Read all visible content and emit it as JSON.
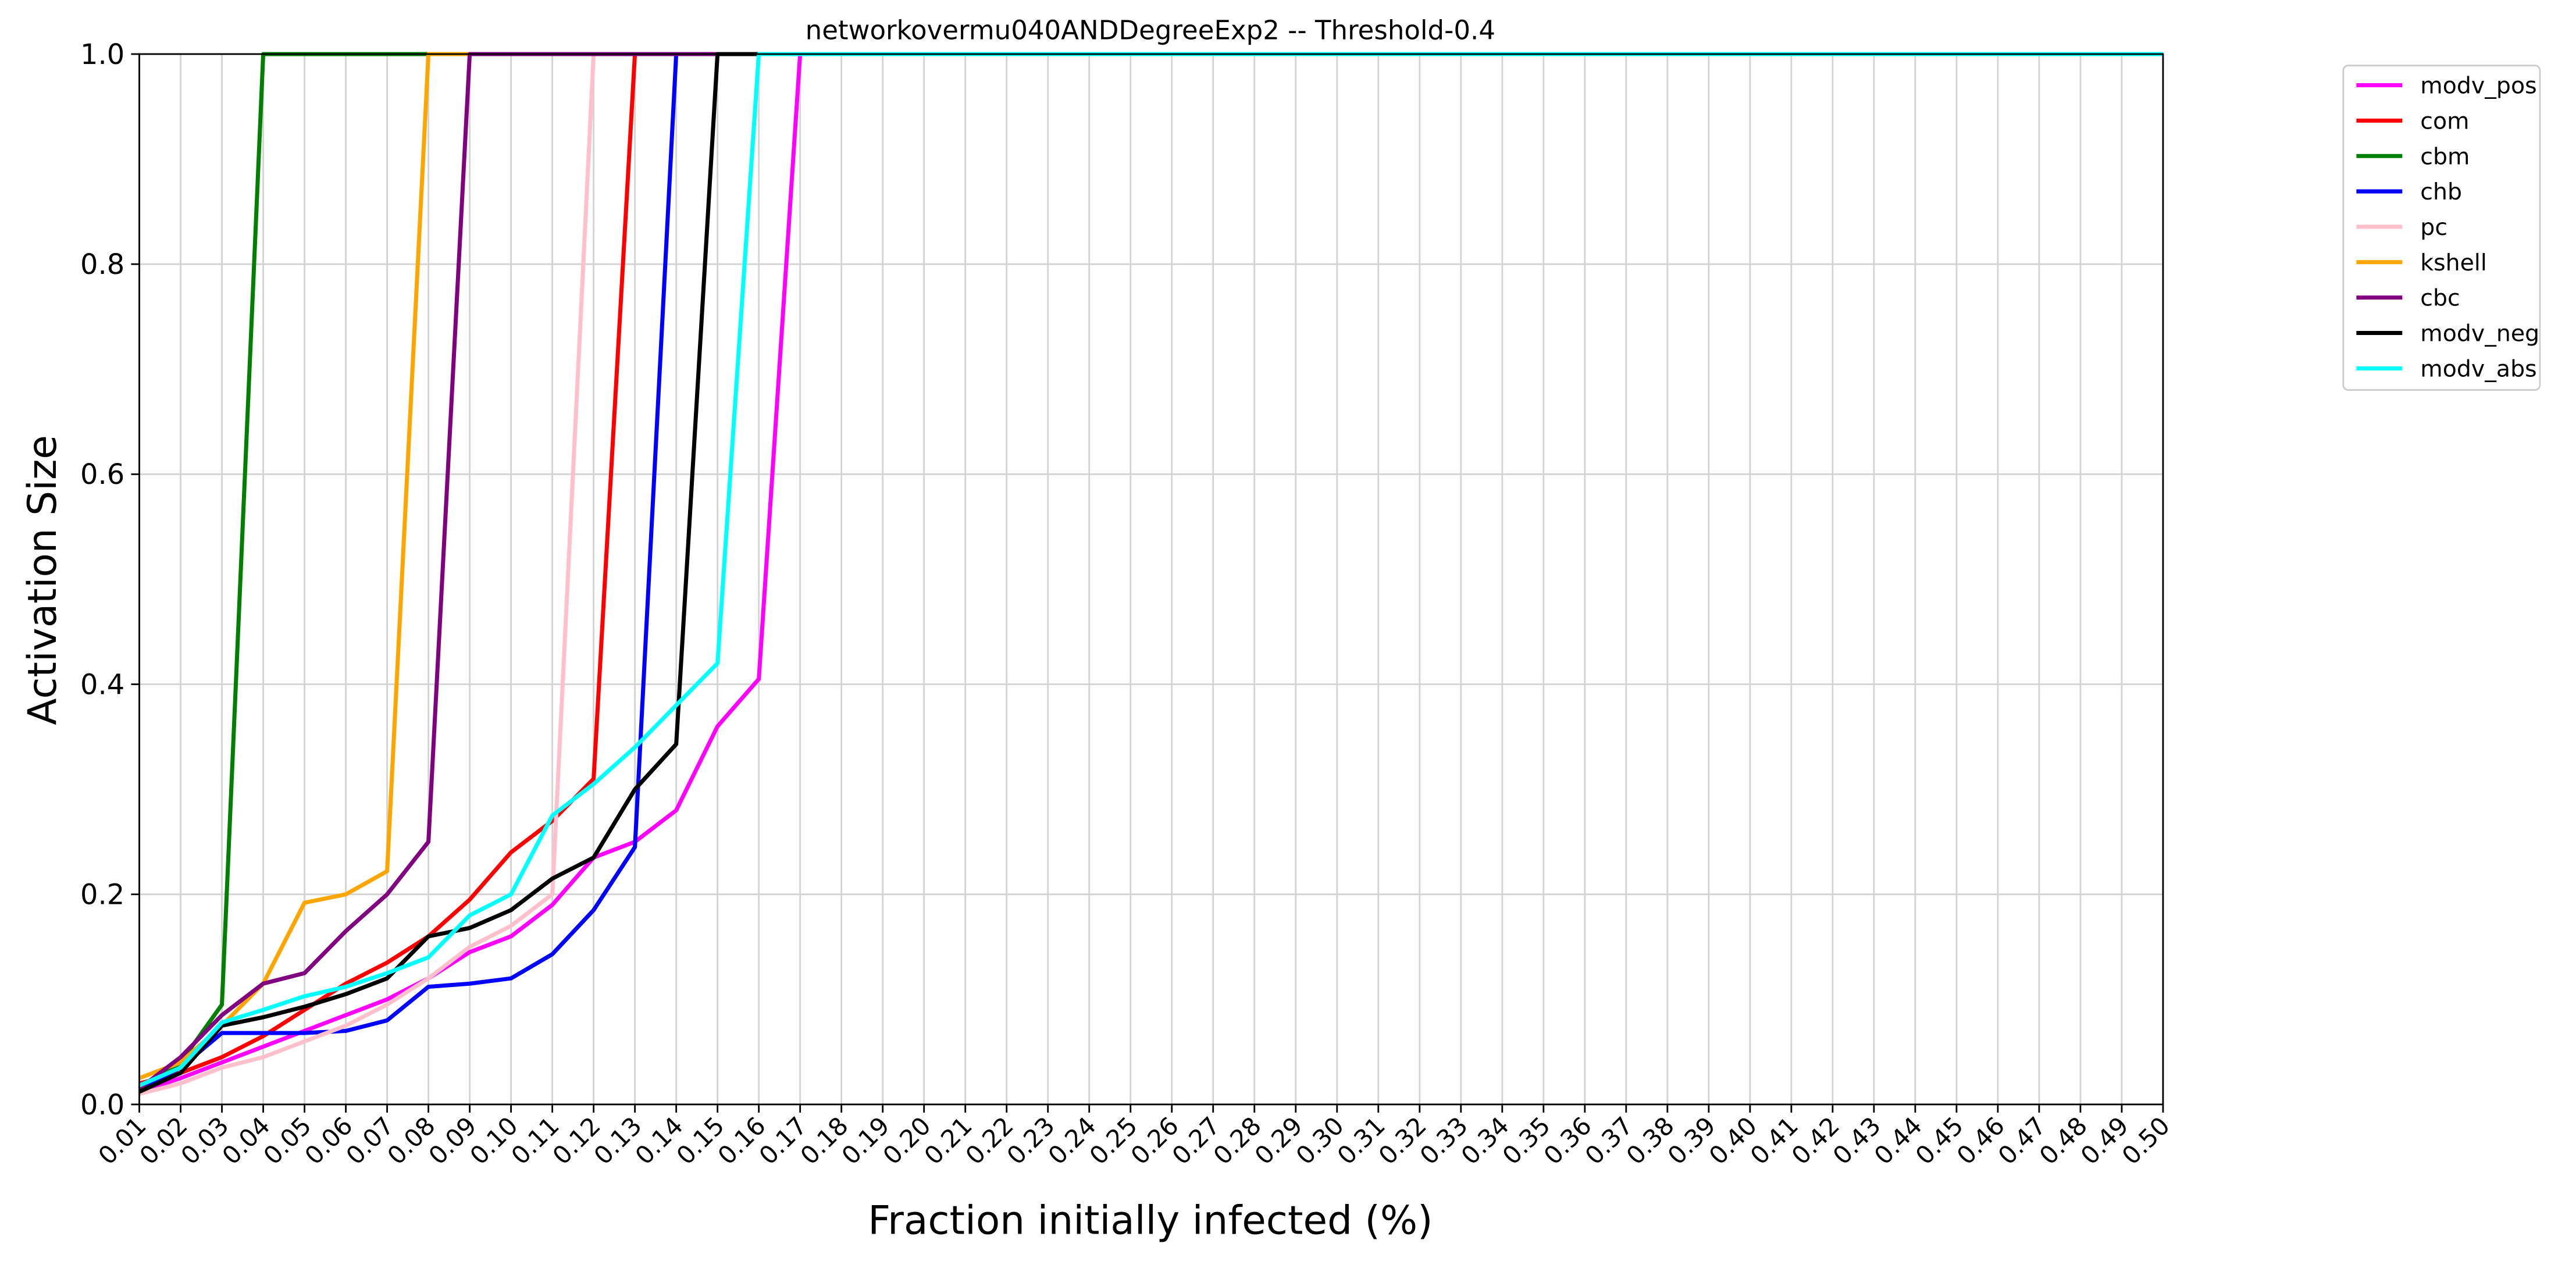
{
  "chart_data": {
    "type": "line",
    "title": "networkovermu040ANDDegreeExp2 -- Threshold-0.4",
    "x_label": "Fraction initially infected (%)",
    "y_label": "Activation Size",
    "categories": [
      "0.01",
      "0.02",
      "0.03",
      "0.04",
      "0.05",
      "0.06",
      "0.07",
      "0.08",
      "0.09",
      "0.10",
      "0.11",
      "0.12",
      "0.13",
      "0.14",
      "0.15",
      "0.16",
      "0.17",
      "0.18",
      "0.19",
      "0.20",
      "0.21",
      "0.22",
      "0.23",
      "0.24",
      "0.25",
      "0.26",
      "0.27",
      "0.28",
      "0.29",
      "0.30",
      "0.31",
      "0.32",
      "0.33",
      "0.34",
      "0.35",
      "0.36",
      "0.37",
      "0.38",
      "0.39",
      "0.40",
      "0.41",
      "0.42",
      "0.43",
      "0.44",
      "0.45",
      "0.46",
      "0.47",
      "0.48",
      "0.49",
      "0.50"
    ],
    "ylim": [
      0,
      1
    ],
    "yticks": [
      {
        "value": 0,
        "label": "0.0"
      },
      0.2,
      0.4,
      0.6,
      0.8,
      {
        "value": 1,
        "label": "1.0"
      }
    ],
    "grid": true,
    "legend": "outside-upper-right",
    "series": [
      {
        "name": "modv_pos",
        "color": "#ff00ff",
        "values": [
          0.012,
          0.025,
          0.04,
          0.055,
          0.07,
          0.085,
          0.1,
          0.12,
          0.145,
          0.16,
          0.19,
          0.235,
          0.25,
          0.28,
          0.36,
          0.405,
          1,
          1,
          1,
          1,
          1,
          1,
          1,
          1,
          1,
          1,
          1,
          1,
          1,
          1,
          1,
          1,
          1,
          1,
          1,
          1,
          1,
          1,
          1,
          1,
          1,
          1,
          1,
          1,
          1,
          1,
          1,
          1,
          1,
          1
        ]
      },
      {
        "name": "com",
        "color": "#ff0000",
        "values": [
          0.02,
          0.03,
          0.045,
          0.065,
          0.09,
          0.115,
          0.135,
          0.16,
          0.195,
          0.24,
          0.27,
          0.31,
          1,
          1,
          1,
          1,
          1,
          1,
          1,
          1,
          1,
          1,
          1,
          1,
          1,
          1,
          1,
          1,
          1,
          1,
          1,
          1,
          1,
          1,
          1,
          1,
          1,
          1,
          1,
          1,
          1,
          1,
          1,
          1,
          1,
          1,
          1,
          1,
          1,
          1
        ]
      },
      {
        "name": "cbm",
        "color": "#008000",
        "values": [
          0.015,
          0.04,
          0.095,
          1,
          1,
          1,
          1,
          1,
          1,
          1,
          1,
          1,
          1,
          1,
          1,
          1,
          1,
          1,
          1,
          1,
          1,
          1,
          1,
          1,
          1,
          1,
          1,
          1,
          1,
          1,
          1,
          1,
          1,
          1,
          1,
          1,
          1,
          1,
          1,
          1,
          1,
          1,
          1,
          1,
          1,
          1,
          1,
          1,
          1,
          1
        ]
      },
      {
        "name": "chb",
        "color": "#0000ff",
        "values": [
          0.015,
          0.035,
          0.068,
          0.068,
          0.068,
          0.07,
          0.08,
          0.112,
          0.115,
          0.12,
          0.143,
          0.185,
          0.245,
          1,
          1,
          1,
          1,
          1,
          1,
          1,
          1,
          1,
          1,
          1,
          1,
          1,
          1,
          1,
          1,
          1,
          1,
          1,
          1,
          1,
          1,
          1,
          1,
          1,
          1,
          1,
          1,
          1,
          1,
          1,
          1,
          1,
          1,
          1,
          1,
          1
        ]
      },
      {
        "name": "pc",
        "color": "#ffc0cb",
        "values": [
          0.01,
          0.02,
          0.035,
          0.045,
          0.06,
          0.075,
          0.095,
          0.12,
          0.15,
          0.17,
          0.2,
          1,
          1,
          1,
          1,
          1,
          1,
          1,
          1,
          1,
          1,
          1,
          1,
          1,
          1,
          1,
          1,
          1,
          1,
          1,
          1,
          1,
          1,
          1,
          1,
          1,
          1,
          1,
          1,
          1,
          1,
          1,
          1,
          1,
          1,
          1,
          1,
          1,
          1,
          1
        ]
      },
      {
        "name": "kshell",
        "color": "#ffa500",
        "values": [
          0.025,
          0.04,
          0.075,
          0.115,
          0.192,
          0.2,
          0.222,
          1,
          1,
          1,
          1,
          1,
          1,
          1,
          1,
          1,
          1,
          1,
          1,
          1,
          1,
          1,
          1,
          1,
          1,
          1,
          1,
          1,
          1,
          1,
          1,
          1,
          1,
          1,
          1,
          1,
          1,
          1,
          1,
          1,
          1,
          1,
          1,
          1,
          1,
          1,
          1,
          1,
          1,
          1
        ]
      },
      {
        "name": "cbc",
        "color": "#800080",
        "values": [
          0.015,
          0.045,
          0.085,
          0.115,
          0.125,
          0.165,
          0.2,
          0.25,
          1,
          1,
          1,
          1,
          1,
          1,
          1,
          1,
          1,
          1,
          1,
          1,
          1,
          1,
          1,
          1,
          1,
          1,
          1,
          1,
          1,
          1,
          1,
          1,
          1,
          1,
          1,
          1,
          1,
          1,
          1,
          1,
          1,
          1,
          1,
          1,
          1,
          1,
          1,
          1,
          1,
          1
        ]
      },
      {
        "name": "modv_neg",
        "color": "#000000",
        "values": [
          0.012,
          0.03,
          0.075,
          0.083,
          0.093,
          0.105,
          0.12,
          0.16,
          0.168,
          0.185,
          0.215,
          0.235,
          0.3,
          0.343,
          1,
          1,
          1,
          1,
          1,
          1,
          1,
          1,
          1,
          1,
          1,
          1,
          1,
          1,
          1,
          1,
          1,
          1,
          1,
          1,
          1,
          1,
          1,
          1,
          1,
          1,
          1,
          1,
          1,
          1,
          1,
          1,
          1,
          1,
          1,
          1
        ]
      },
      {
        "name": "modv_abs",
        "color": "#00ffff",
        "values": [
          0.018,
          0.035,
          0.078,
          0.09,
          0.103,
          0.112,
          0.125,
          0.14,
          0.18,
          0.2,
          0.275,
          0.305,
          0.34,
          0.38,
          0.42,
          1,
          1,
          1,
          1,
          1,
          1,
          1,
          1,
          1,
          1,
          1,
          1,
          1,
          1,
          1,
          1,
          1,
          1,
          1,
          1,
          1,
          1,
          1,
          1,
          1,
          1,
          1,
          1,
          1,
          1,
          1,
          1,
          1,
          1,
          1
        ]
      }
    ]
  }
}
